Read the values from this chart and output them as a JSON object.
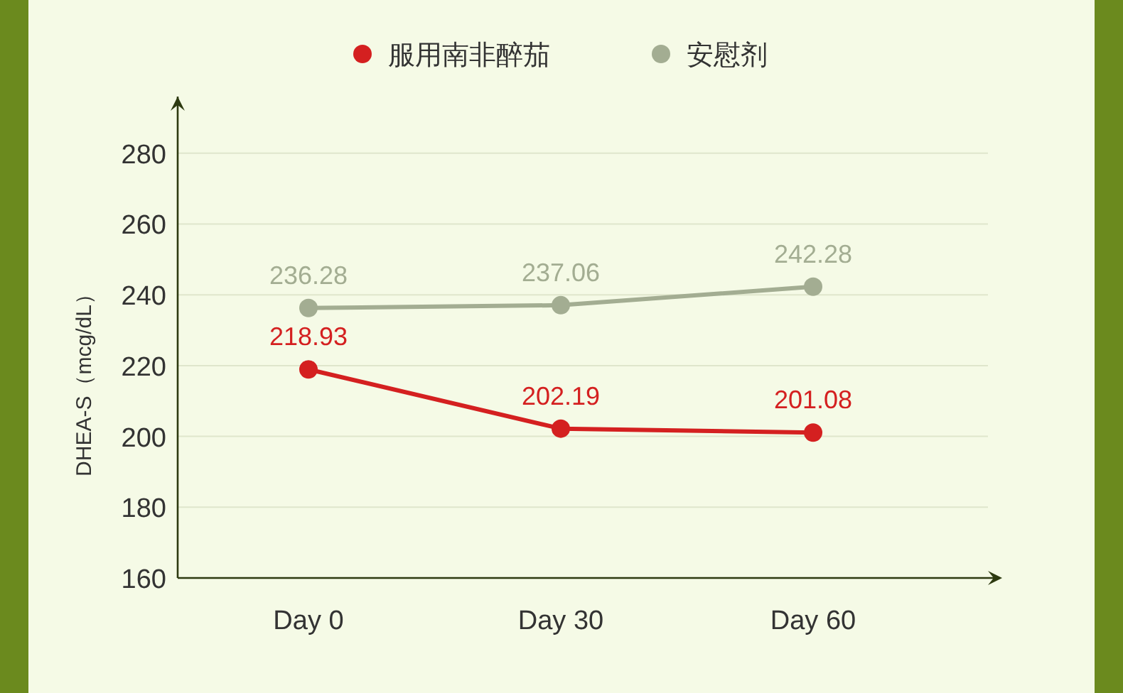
{
  "chart_data": {
    "type": "line",
    "ylabel": "DHEA-S（mcg/dL）",
    "categories": [
      "Day 0",
      "Day 30",
      "Day 60"
    ],
    "series": [
      {
        "name": "服用南非醉茄",
        "color": "#d42020",
        "values": [
          218.93,
          202.19,
          201.08
        ]
      },
      {
        "name": "安慰剂",
        "color": "#a3ad92",
        "values": [
          236.28,
          237.06,
          242.28
        ]
      }
    ],
    "ylim": [
      160,
      296
    ],
    "yticks": [
      160,
      180,
      200,
      220,
      240,
      260,
      280
    ],
    "grid": "y",
    "legend": "top",
    "marker": "circle",
    "line_style": "solid",
    "data_labels": true
  }
}
